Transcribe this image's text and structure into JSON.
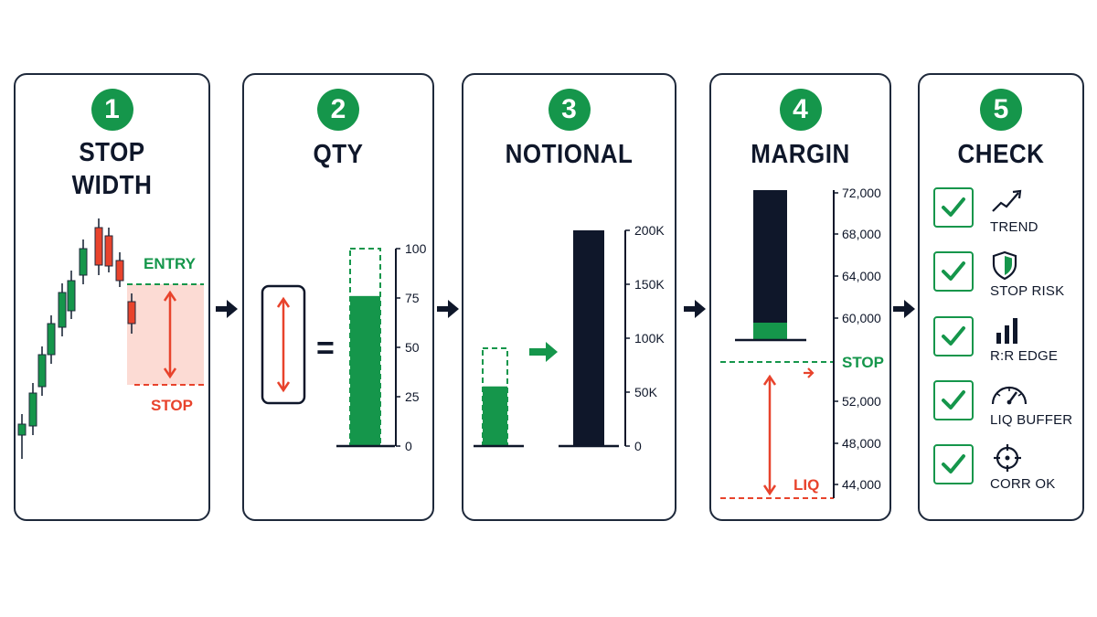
{
  "colors": {
    "green": "#15964b",
    "red": "#e8432c",
    "navy": "#0f172a",
    "zone": "#fbd5cc"
  },
  "steps": [
    {
      "number": "1",
      "title": "STOP\nWIDTH"
    },
    {
      "number": "2",
      "title": "QTY"
    },
    {
      "number": "3",
      "title": "NOTIONAL"
    },
    {
      "number": "4",
      "title": "MARGIN"
    },
    {
      "number": "5",
      "title": "CHECK"
    }
  ],
  "panel1": {
    "entry_label": "ENTRY",
    "stop_label": "STOP"
  },
  "panel2": {
    "equals": "=",
    "axis_ticks": [
      "100",
      "75",
      "50",
      "25",
      "0"
    ],
    "bar_fill_level": 76
  },
  "panel3": {
    "axis_ticks": [
      "200K",
      "150K",
      "100K",
      "50K",
      "0"
    ],
    "small_bar_fill_fraction": 0.61,
    "big_bar_value": 200000
  },
  "panel4": {
    "axis_ticks": [
      "72,000",
      "68,000",
      "64,000",
      "60,000",
      "52,000",
      "48,000",
      "44,000"
    ],
    "stop_label": "STOP",
    "liq_label": "LIQ"
  },
  "checks": [
    {
      "icon": "trend-up-icon",
      "label": "TREND"
    },
    {
      "icon": "shield-icon",
      "label": "STOP RISK"
    },
    {
      "icon": "bar-chart-icon",
      "label": "R:R EDGE"
    },
    {
      "icon": "gauge-icon",
      "label": "LIQ BUFFER"
    },
    {
      "icon": "crosshair-icon",
      "label": "CORR OK"
    }
  ]
}
